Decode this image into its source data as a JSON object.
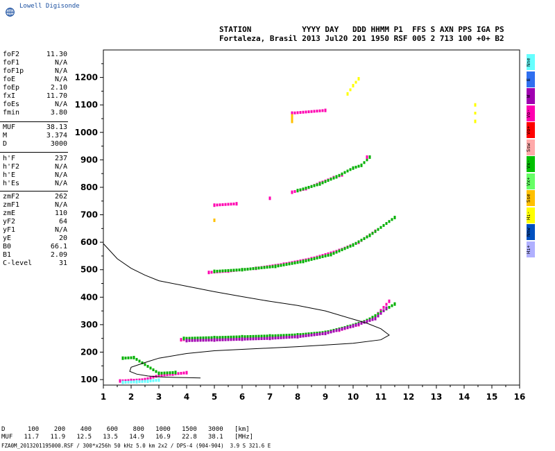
{
  "header": {
    "logo_text": "Lowell Digisonde",
    "line1": "STATION           YYYY DAY   DDD HHMM P1  FFS S AXN PPS IGA PS",
    "line2": "Fortaleza, Brasil 2013 Jul20 201 1950 RSF 005 2 713 100 +0+ B2"
  },
  "params": {
    "group1": [
      {
        "k": "foF2",
        "v": "11.30"
      },
      {
        "k": "foF1",
        "v": "N/A"
      },
      {
        "k": "foF1p",
        "v": "N/A"
      },
      {
        "k": "foE",
        "v": "N/A"
      },
      {
        "k": "foEp",
        "v": "2.10"
      },
      {
        "k": "fxI",
        "v": "11.70"
      },
      {
        "k": "foEs",
        "v": "N/A"
      },
      {
        "k": "fmin",
        "v": "3.80"
      }
    ],
    "group2": [
      {
        "k": "MUF",
        "v": "38.13"
      },
      {
        "k": "M",
        "v": "3.374"
      },
      {
        "k": "D",
        "v": "3000"
      }
    ],
    "group3": [
      {
        "k": "h'F",
        "v": "237"
      },
      {
        "k": "h'F2",
        "v": "N/A"
      },
      {
        "k": "h'E",
        "v": "N/A"
      },
      {
        "k": "h'Es",
        "v": "N/A"
      }
    ],
    "group4": [
      {
        "k": "zmF2",
        "v": "262"
      },
      {
        "k": "zmF1",
        "v": "N/A"
      },
      {
        "k": "zmE",
        "v": "110"
      },
      {
        "k": "yF2",
        "v": "64"
      },
      {
        "k": "yF1",
        "v": "N/A"
      },
      {
        "k": "yE",
        "v": "20"
      },
      {
        "k": "B0",
        "v": "66.1"
      },
      {
        "k": "B1",
        "v": "2.09"
      },
      {
        "k": "C-level",
        "v": "31"
      }
    ]
  },
  "legend": [
    {
      "label": "Nne",
      "color": "#66ffff"
    },
    {
      "label": "E",
      "color": "#2f6ff0"
    },
    {
      "label": "W",
      "color": "#a000b0"
    },
    {
      "label": "Vo-",
      "color": "#ff00b0"
    },
    {
      "label": "Vo+",
      "color": "#ff0000"
    },
    {
      "label": "Ssw",
      "color": "#ffaaaa"
    },
    {
      "label": "Vx-",
      "color": "#00c000"
    },
    {
      "label": "Vx+",
      "color": "#66ff66"
    },
    {
      "label": "Sse",
      "color": "#ffc000"
    },
    {
      "label": "Hi-",
      "color": "#ffff00"
    },
    {
      "label": "Nnw",
      "color": "#0050c0"
    },
    {
      "label": "Hi+",
      "color": "#b0b0ff"
    }
  ],
  "bottom": {
    "row1": "D      100    200    400    600    800   1000   1500   3000   [km]",
    "row2": "MUF   11.7   11.9   12.5   13.5   14.9   16.9   22.8   38.1   [MHz]",
    "row3": "FZA0M_2013201195000.RSF / 300*x256h 50 kHz 5.0 km 2x2 / DPS-4 (904-904)  3.9 S 321.6 E"
  },
  "chart_data": {
    "type": "scatter",
    "x": {
      "min": 1,
      "max": 16,
      "ticks": [
        1,
        2,
        3,
        4,
        5,
        6,
        7,
        8,
        9,
        10,
        11,
        12,
        13,
        14,
        15,
        16
      ]
    },
    "y": {
      "min": 80,
      "max": 1300,
      "ticks": [
        100,
        200,
        300,
        400,
        500,
        600,
        700,
        800,
        900,
        1000,
        1100,
        1200
      ]
    },
    "profile": [
      [
        1.0,
        595
      ],
      [
        1.5,
        540
      ],
      [
        2.0,
        505
      ],
      [
        2.5,
        480
      ],
      [
        3.0,
        460
      ],
      [
        4.0,
        440
      ],
      [
        5.0,
        420
      ],
      [
        6.0,
        402
      ],
      [
        7.0,
        385
      ],
      [
        8.0,
        370
      ],
      [
        9.0,
        350
      ],
      [
        10.0,
        320
      ],
      [
        10.5,
        305
      ],
      [
        11.0,
        285
      ],
      [
        11.3,
        262
      ],
      [
        11.0,
        245
      ],
      [
        10.0,
        232
      ],
      [
        9.0,
        226
      ],
      [
        8.0,
        220
      ],
      [
        7.0,
        215
      ],
      [
        6.0,
        210
      ],
      [
        5.0,
        205
      ],
      [
        4.0,
        195
      ],
      [
        3.0,
        178
      ],
      [
        2.5,
        162
      ],
      [
        2.0,
        145
      ],
      [
        1.95,
        130
      ],
      [
        2.2,
        120
      ],
      [
        2.6,
        113
      ],
      [
        3.0,
        110
      ],
      [
        3.5,
        108
      ],
      [
        4.0,
        107
      ],
      [
        4.5,
        106
      ]
    ],
    "traces": [
      {
        "color": "#ff00b0",
        "pts": [
          [
            3.8,
            245
          ],
          [
            4.5,
            247
          ],
          [
            5.5,
            250
          ],
          [
            6.5,
            253
          ],
          [
            7.5,
            258
          ],
          [
            8.5,
            265
          ],
          [
            9.5,
            280
          ],
          [
            10.2,
            300
          ],
          [
            10.8,
            330
          ],
          [
            11.3,
            385
          ]
        ]
      },
      {
        "color": "#00b000",
        "pts": [
          [
            3.9,
            250
          ],
          [
            5,
            253
          ],
          [
            6,
            256
          ],
          [
            7,
            259
          ],
          [
            8,
            263
          ],
          [
            9,
            272
          ],
          [
            9.8,
            292
          ],
          [
            10.5,
            315
          ],
          [
            11.0,
            345
          ],
          [
            11.5,
            375
          ]
        ]
      },
      {
        "color": "#a000b0",
        "pts": [
          [
            4.0,
            242
          ],
          [
            5,
            244
          ],
          [
            6,
            247
          ],
          [
            7,
            250
          ],
          [
            8,
            256
          ],
          [
            9,
            268
          ],
          [
            10,
            295
          ],
          [
            10.8,
            322
          ],
          [
            11.2,
            360
          ]
        ]
      },
      {
        "color": "#ff00b0",
        "pts": [
          [
            4.8,
            490
          ],
          [
            5.5,
            495
          ],
          [
            6.5,
            505
          ],
          [
            7.5,
            520
          ],
          [
            8.5,
            540
          ],
          [
            9.5,
            570
          ],
          [
            10.2,
            600
          ],
          [
            10.8,
            640
          ]
        ]
      },
      {
        "color": "#00b000",
        "pts": [
          [
            5.0,
            494
          ],
          [
            6.0,
            500
          ],
          [
            7.2,
            512
          ],
          [
            8.2,
            530
          ],
          [
            9.2,
            555
          ],
          [
            10.0,
            590
          ],
          [
            10.6,
            625
          ],
          [
            11.5,
            690
          ]
        ]
      },
      {
        "color": "#ff00b0",
        "pts": [
          [
            7.8,
            782
          ],
          [
            8.3,
            795
          ],
          [
            8.8,
            815
          ],
          [
            9.3,
            835
          ],
          [
            9.6,
            845
          ]
        ]
      },
      {
        "color": "#00b000",
        "pts": [
          [
            8.0,
            788
          ],
          [
            8.8,
            812
          ],
          [
            9.4,
            838
          ],
          [
            10.0,
            870
          ],
          [
            10.3,
            880
          ],
          [
            10.6,
            910
          ]
        ]
      },
      {
        "color": "#ff00b0",
        "pts": [
          [
            1.6,
            95
          ],
          [
            2.0,
            97
          ],
          [
            2.5,
            100
          ],
          [
            3.0,
            115
          ],
          [
            3.5,
            120
          ],
          [
            4.0,
            125
          ]
        ]
      },
      {
        "color": "#66ffff",
        "pts": [
          [
            1.7,
            90
          ],
          [
            2.2,
            92
          ],
          [
            2.6,
            94
          ],
          [
            3.0,
            98
          ]
        ]
      },
      {
        "color": "#00b000",
        "pts": [
          [
            1.7,
            178
          ],
          [
            2.1,
            180
          ],
          [
            3.0,
            123
          ],
          [
            3.6,
            126
          ]
        ]
      },
      {
        "color": "#ffff00",
        "pts": [
          [
            9.8,
            1140
          ],
          [
            10.0,
            1170
          ],
          [
            10.2,
            1195
          ],
          [
            14.4,
            1040
          ],
          [
            14.4,
            1100
          ]
        ]
      },
      {
        "color": "#ff00b0",
        "pts": [
          [
            7.0,
            760
          ],
          [
            5.0,
            735
          ],
          [
            5.8,
            740
          ],
          [
            7.8,
            1070
          ],
          [
            9.0,
            1080
          ],
          [
            10.5,
            910
          ]
        ]
      },
      {
        "color": "#ffc000",
        "pts": [
          [
            7.8,
            1040
          ],
          [
            7.8,
            1060
          ],
          [
            5.0,
            680
          ]
        ]
      }
    ]
  }
}
